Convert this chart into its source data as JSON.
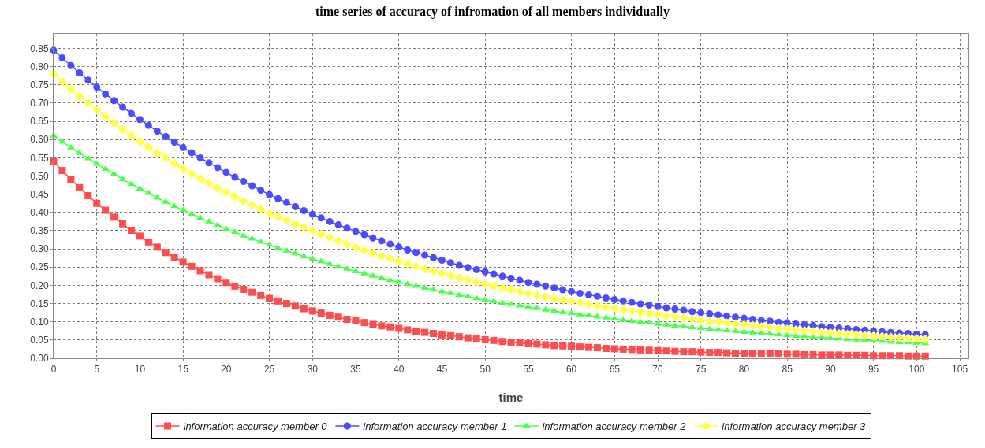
{
  "chart_data": {
    "type": "line",
    "title": "time series of accuracy of infromation of all members individually",
    "xlabel": "time",
    "x": [
      0,
      1,
      2,
      3,
      4,
      5,
      6,
      7,
      8,
      9,
      10,
      11,
      12,
      13,
      14,
      15,
      16,
      17,
      18,
      19,
      20,
      21,
      22,
      23,
      24,
      25,
      26,
      27,
      28,
      29,
      30,
      31,
      32,
      33,
      34,
      35,
      36,
      37,
      38,
      39,
      40,
      41,
      42,
      43,
      44,
      45,
      46,
      47,
      48,
      49,
      50,
      51,
      52,
      53,
      54,
      55,
      56,
      57,
      58,
      59,
      60,
      61,
      62,
      63,
      64,
      65,
      66,
      67,
      68,
      69,
      70,
      71,
      72,
      73,
      74,
      75,
      76,
      77,
      78,
      79,
      80,
      81,
      82,
      83,
      84,
      85,
      86,
      87,
      88,
      89,
      90,
      91,
      92,
      93,
      94,
      95,
      96,
      97,
      98,
      99,
      100,
      101
    ],
    "series": [
      {
        "name": "information accuracy member 0",
        "color": "#ff4c4c",
        "marker": "square",
        "values": [
          0.54,
          0.515,
          0.491,
          0.468,
          0.446,
          0.425,
          0.406,
          0.387,
          0.369,
          0.351,
          0.335,
          0.319,
          0.305,
          0.29,
          0.277,
          0.264,
          0.252,
          0.24,
          0.229,
          0.218,
          0.208,
          0.198,
          0.189,
          0.181,
          0.172,
          0.164,
          0.157,
          0.15,
          0.143,
          0.136,
          0.13,
          0.124,
          0.118,
          0.113,
          0.107,
          0.103,
          0.098,
          0.093,
          0.089,
          0.086,
          0.082,
          0.078,
          0.074,
          0.071,
          0.068,
          0.064,
          0.062,
          0.059,
          0.056,
          0.053,
          0.051,
          0.049,
          0.046,
          0.044,
          0.042,
          0.04,
          0.039,
          0.037,
          0.035,
          0.034,
          0.033,
          0.031,
          0.03,
          0.029,
          0.027,
          0.026,
          0.025,
          0.024,
          0.023,
          0.022,
          0.021,
          0.02,
          0.019,
          0.018,
          0.018,
          0.017,
          0.016,
          0.016,
          0.015,
          0.014,
          0.014,
          0.013,
          0.013,
          0.012,
          0.012,
          0.011,
          0.011,
          0.01,
          0.01,
          0.009,
          0.009,
          0.009,
          0.008,
          0.008,
          0.008,
          0.007,
          0.007,
          0.007,
          0.007,
          0.006,
          0.006,
          0.006
        ]
      },
      {
        "name": "information accuracy member 1",
        "color": "#4c4cff",
        "marker": "circle",
        "values": [
          0.845,
          0.824,
          0.803,
          0.783,
          0.763,
          0.744,
          0.725,
          0.707,
          0.689,
          0.672,
          0.655,
          0.639,
          0.623,
          0.608,
          0.593,
          0.578,
          0.564,
          0.55,
          0.536,
          0.523,
          0.51,
          0.497,
          0.485,
          0.473,
          0.461,
          0.449,
          0.438,
          0.427,
          0.416,
          0.405,
          0.395,
          0.385,
          0.375,
          0.366,
          0.357,
          0.348,
          0.339,
          0.33,
          0.322,
          0.313,
          0.305,
          0.297,
          0.29,
          0.283,
          0.276,
          0.269,
          0.262,
          0.255,
          0.249,
          0.243,
          0.237,
          0.231,
          0.225,
          0.219,
          0.214,
          0.208,
          0.203,
          0.198,
          0.193,
          0.188,
          0.183,
          0.178,
          0.174,
          0.17,
          0.165,
          0.161,
          0.157,
          0.153,
          0.149,
          0.146,
          0.142,
          0.138,
          0.135,
          0.132,
          0.128,
          0.125,
          0.122,
          0.119,
          0.116,
          0.113,
          0.11,
          0.107,
          0.104,
          0.102,
          0.099,
          0.097,
          0.094,
          0.092,
          0.09,
          0.087,
          0.085,
          0.083,
          0.081,
          0.079,
          0.077,
          0.075,
          0.073,
          0.071,
          0.069,
          0.068,
          0.066,
          0.065
        ]
      },
      {
        "name": "information accuracy member 2",
        "color": "#4cff4c",
        "marker": "triangle",
        "values": [
          0.61,
          0.594,
          0.578,
          0.563,
          0.548,
          0.533,
          0.519,
          0.505,
          0.491,
          0.478,
          0.465,
          0.453,
          0.44,
          0.429,
          0.417,
          0.406,
          0.396,
          0.385,
          0.375,
          0.365,
          0.355,
          0.346,
          0.336,
          0.328,
          0.319,
          0.311,
          0.302,
          0.295,
          0.287,
          0.279,
          0.272,
          0.265,
          0.258,
          0.251,
          0.245,
          0.238,
          0.232,
          0.226,
          0.22,
          0.214,
          0.209,
          0.203,
          0.198,
          0.193,
          0.188,
          0.183,
          0.178,
          0.173,
          0.169,
          0.164,
          0.16,
          0.156,
          0.152,
          0.148,
          0.144,
          0.14,
          0.137,
          0.133,
          0.13,
          0.126,
          0.123,
          0.12,
          0.117,
          0.114,
          0.111,
          0.108,
          0.105,
          0.102,
          0.099,
          0.097,
          0.094,
          0.092,
          0.089,
          0.087,
          0.085,
          0.082,
          0.08,
          0.078,
          0.076,
          0.074,
          0.072,
          0.07,
          0.068,
          0.067,
          0.065,
          0.063,
          0.061,
          0.06,
          0.058,
          0.057,
          0.055,
          0.054,
          0.052,
          0.051,
          0.049,
          0.048,
          0.047,
          0.045,
          0.044,
          0.043,
          0.042,
          0.041
        ]
      },
      {
        "name": "information accuracy member 3",
        "color": "#ffff4c",
        "marker": "diamond",
        "values": [
          0.78,
          0.759,
          0.739,
          0.719,
          0.7,
          0.681,
          0.663,
          0.645,
          0.628,
          0.611,
          0.595,
          0.579,
          0.564,
          0.549,
          0.534,
          0.52,
          0.506,
          0.493,
          0.48,
          0.467,
          0.455,
          0.443,
          0.431,
          0.42,
          0.409,
          0.398,
          0.388,
          0.378,
          0.368,
          0.359,
          0.35,
          0.341,
          0.331,
          0.322,
          0.313,
          0.304,
          0.296,
          0.288,
          0.28,
          0.273,
          0.266,
          0.259,
          0.252,
          0.245,
          0.239,
          0.233,
          0.227,
          0.221,
          0.215,
          0.209,
          0.204,
          0.198,
          0.193,
          0.188,
          0.183,
          0.178,
          0.173,
          0.169,
          0.164,
          0.16,
          0.156,
          0.152,
          0.148,
          0.144,
          0.14,
          0.137,
          0.133,
          0.13,
          0.126,
          0.123,
          0.12,
          0.117,
          0.114,
          0.111,
          0.108,
          0.105,
          0.102,
          0.1,
          0.097,
          0.094,
          0.092,
          0.09,
          0.087,
          0.085,
          0.083,
          0.08,
          0.078,
          0.076,
          0.074,
          0.072,
          0.07,
          0.068,
          0.066,
          0.065,
          0.063,
          0.061,
          0.06,
          0.058,
          0.057,
          0.055,
          0.054,
          0.052
        ]
      }
    ],
    "xlim": [
      0,
      106
    ],
    "xticks": [
      0,
      5,
      10,
      15,
      20,
      25,
      30,
      35,
      40,
      45,
      50,
      55,
      60,
      65,
      70,
      75,
      80,
      85,
      90,
      95,
      100,
      105
    ],
    "ylim": [
      0,
      0.89
    ],
    "yticks": [
      {
        "value": 0,
        "label": "0.00"
      },
      {
        "value": 0.05,
        "label": "0.05"
      },
      {
        "value": 0.1,
        "label": "0.10"
      },
      {
        "value": 0.15,
        "label": "0.15"
      },
      {
        "value": 0.2,
        "label": "0.20"
      },
      {
        "value": 0.25,
        "label": "0.25"
      },
      {
        "value": 0.3,
        "label": "0.30"
      },
      {
        "value": 0.35,
        "label": "0.35"
      },
      {
        "value": 0.4,
        "label": "0.40"
      },
      {
        "value": 0.45,
        "label": "0.45"
      },
      {
        "value": 0.5,
        "label": "0.50"
      },
      {
        "value": 0.55,
        "label": "0.55"
      },
      {
        "value": 0.6,
        "label": "0.60"
      },
      {
        "value": 0.65,
        "label": "0.65"
      },
      {
        "value": 0.7,
        "label": "0.70"
      },
      {
        "value": 0.75,
        "label": "0.75"
      },
      {
        "value": 0.8,
        "label": "0.80"
      },
      {
        "value": 0.85,
        "label": "0.85"
      }
    ],
    "grid": true,
    "legend": "bottom",
    "line_style": "solid"
  }
}
